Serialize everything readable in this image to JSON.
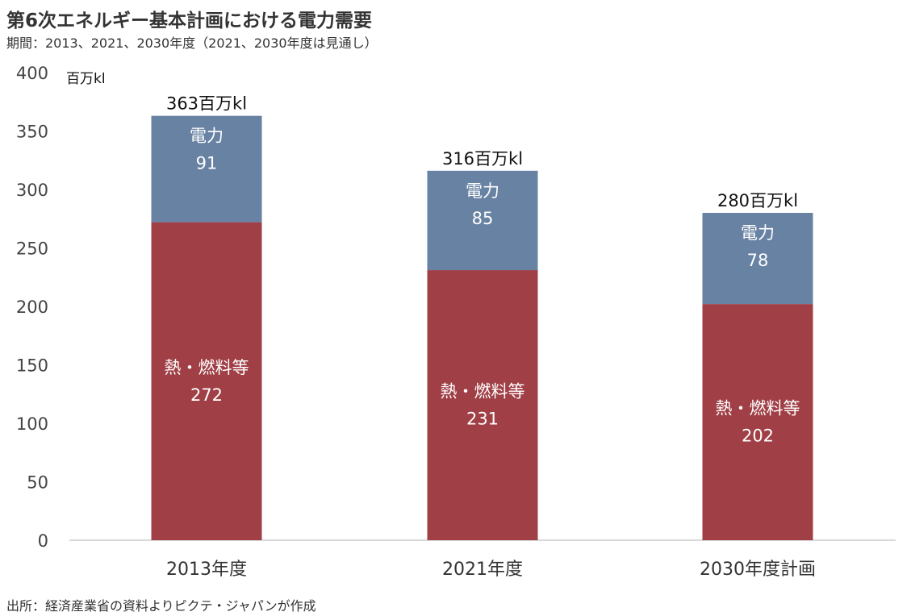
{
  "title": "第6次エネルギー基本計画における電力需要",
  "subtitle": "期間：2013、2021、2030年度（2021、2030年度は見通し）",
  "source": "出所：経済産業省の資料よりピクテ・ジャパンが作成",
  "chart_data": {
    "type": "bar",
    "stacked": true,
    "title": "第6次エネルギー基本計画における電力需要",
    "ylabel": "百万kl",
    "ylim": [
      0,
      400
    ],
    "yticks": [
      0,
      50,
      100,
      150,
      200,
      250,
      300,
      350,
      400
    ],
    "grid": false,
    "categories": [
      "2013年度",
      "2021年度",
      "2030年度計画"
    ],
    "series": [
      {
        "name": "熱・燃料等",
        "values": [
          272,
          231,
          202
        ],
        "color": "#A03F46"
      },
      {
        "name": "電力",
        "values": [
          91,
          85,
          78
        ],
        "color": "#6882A3"
      }
    ],
    "totals": [
      363,
      316,
      280
    ],
    "total_labels": [
      "363百万kl",
      "316百万kl",
      "280百万kl"
    ]
  }
}
